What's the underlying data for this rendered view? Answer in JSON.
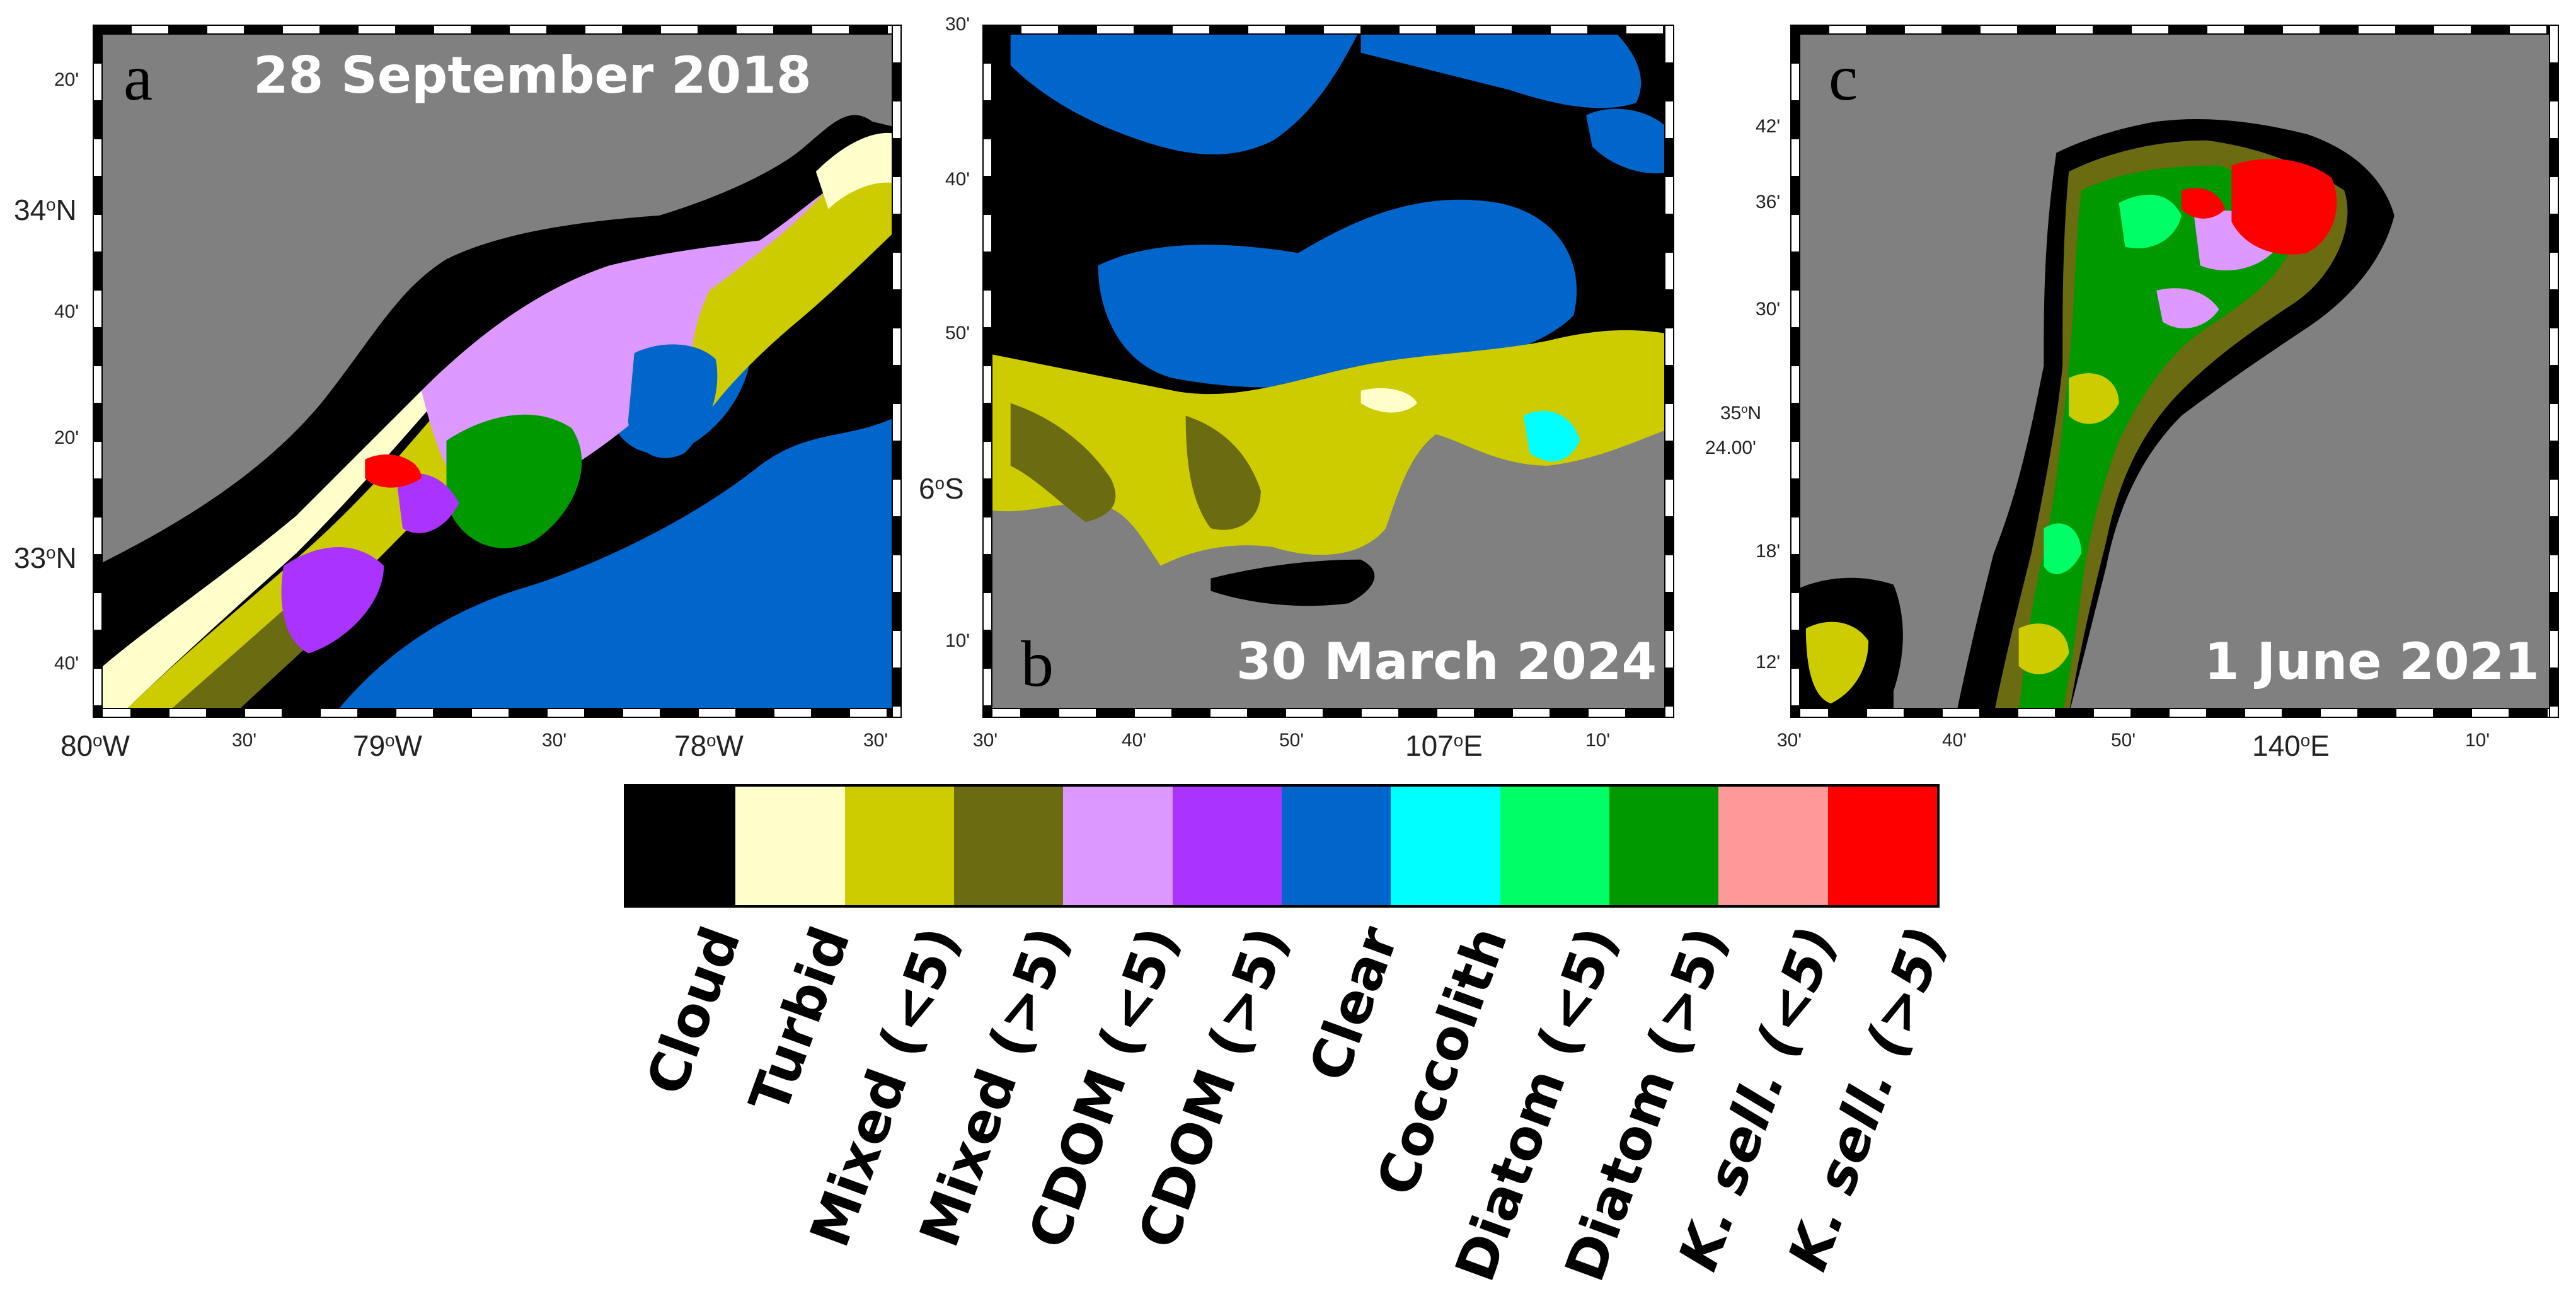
{
  "panels": [
    {
      "letter": "a",
      "date": "28 September 2018",
      "lat_labels": [
        "20'",
        "34°N",
        "40'",
        "20'",
        "33°N",
        "40'"
      ],
      "lon_labels": [
        "80°W",
        "30'",
        "79°W",
        "30'",
        "78°W",
        "30'"
      ]
    },
    {
      "letter": "b",
      "date": "30 March 2024",
      "lat_labels": [
        "30'",
        "40'",
        "50'",
        "6°S",
        "10'"
      ],
      "lon_labels": [
        "30'",
        "40'",
        "50'",
        "107°E",
        "10'"
      ]
    },
    {
      "letter": "c",
      "date": "1 June 2021",
      "lat_labels": [
        "42'",
        "36'",
        "30'",
        "35°N",
        "24.00'",
        "18'",
        "12'"
      ],
      "lon_labels": [
        "30'",
        "40'",
        "50'",
        "140°E",
        "10'"
      ]
    }
  ],
  "legend": {
    "classes": [
      {
        "label": "Cloud",
        "color": "#000000"
      },
      {
        "label": "Turbid",
        "color": "#ffffcc"
      },
      {
        "label": "Mixed (<5)",
        "color": "#cccc00"
      },
      {
        "label": "Mixed (>5)",
        "color": "#6b6b12"
      },
      {
        "label": "CDOM (<5)",
        "color": "#dd99ff"
      },
      {
        "label": "CDOM (>5)",
        "color": "#aa33ff"
      },
      {
        "label": "Clear",
        "color": "#0066cc"
      },
      {
        "label": "Coccolith",
        "color": "#00ffff"
      },
      {
        "label": "Diatom (<5)",
        "color": "#00ff66"
      },
      {
        "label": "Diatom (>5)",
        "color": "#009900"
      },
      {
        "label": "K. sell. (<5)",
        "color": "#ff9999"
      },
      {
        "label": "K. sell. (>5)",
        "color": "#ff0000"
      }
    ]
  },
  "land_color": "#808080"
}
